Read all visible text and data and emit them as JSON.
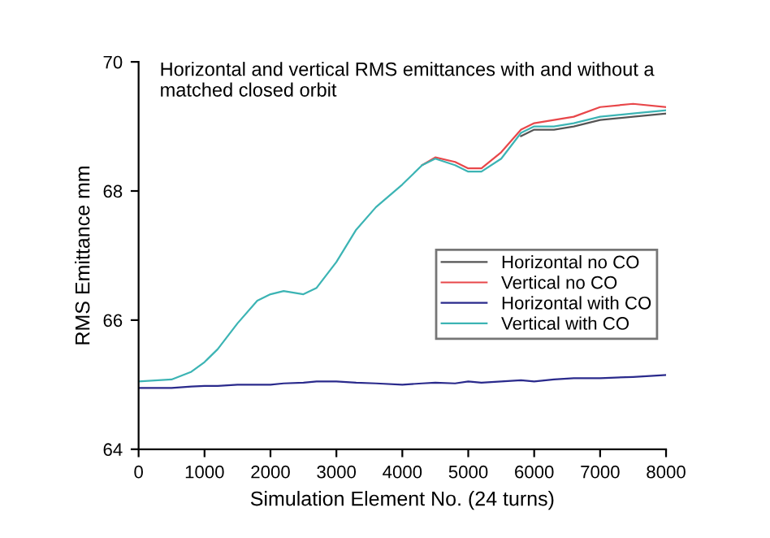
{
  "chart_data": {
    "type": "line",
    "title": "Horizontal and vertical RMS emittances with and without a\nmatched closed orbit",
    "xlabel": "Simulation Element No. (24 turns)",
    "ylabel": "RMS Emittance mm",
    "xlim": [
      0,
      8000
    ],
    "ylim": [
      64,
      70
    ],
    "xticks": [
      0,
      1000,
      2000,
      3000,
      4000,
      5000,
      6000,
      7000,
      8000
    ],
    "yticks": [
      64,
      66,
      68,
      70
    ],
    "grid": false,
    "legend": "right",
    "marker": "none",
    "line_style": "solid",
    "x": [
      0,
      500,
      800,
      1000,
      1200,
      1500,
      1800,
      2000,
      2200,
      2500,
      2700,
      3000,
      3300,
      3600,
      4000,
      4300,
      4500,
      4800,
      5000,
      5200,
      5500,
      5800,
      6000,
      6300,
      6600,
      7000,
      7500,
      8000
    ],
    "series": [
      {
        "name": "Horizontal no CO",
        "color": "#555555",
        "values": [
          null,
          null,
          null,
          null,
          null,
          null,
          null,
          null,
          null,
          null,
          null,
          null,
          null,
          null,
          null,
          null,
          null,
          null,
          null,
          null,
          null,
          68.85,
          68.95,
          68.95,
          69.0,
          69.1,
          69.15,
          69.2
        ]
      },
      {
        "name": "Vertical no CO",
        "color": "#e8474a",
        "values": [
          null,
          null,
          null,
          null,
          null,
          null,
          null,
          null,
          null,
          null,
          null,
          null,
          null,
          null,
          null,
          68.4,
          68.52,
          68.45,
          68.35,
          68.35,
          68.6,
          68.95,
          69.05,
          69.1,
          69.15,
          69.3,
          69.35,
          69.3
        ]
      },
      {
        "name": "Horizontal with CO",
        "color": "#2a2a8c",
        "values": [
          64.95,
          64.95,
          64.97,
          64.98,
          64.98,
          65.0,
          65.0,
          65.0,
          65.02,
          65.03,
          65.05,
          65.05,
          65.03,
          65.02,
          65.0,
          65.02,
          65.03,
          65.02,
          65.05,
          65.03,
          65.05,
          65.07,
          65.05,
          65.08,
          65.1,
          65.1,
          65.12,
          65.15
        ]
      },
      {
        "name": "Vertical with CO",
        "color": "#3cb4b4",
        "values": [
          65.05,
          65.08,
          65.2,
          65.35,
          65.55,
          65.95,
          66.3,
          66.4,
          66.45,
          66.4,
          66.5,
          66.9,
          67.4,
          67.75,
          68.1,
          68.4,
          68.5,
          68.4,
          68.3,
          68.3,
          68.5,
          68.9,
          69.0,
          69.0,
          69.05,
          69.15,
          69.2,
          69.25
        ]
      }
    ]
  }
}
